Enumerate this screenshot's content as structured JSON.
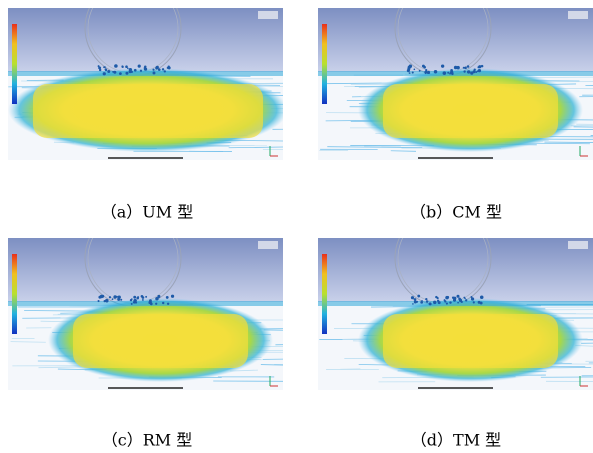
{
  "panels": [
    {
      "caption": "（a）UM 型"
    },
    {
      "caption": "（b）CM 型"
    },
    {
      "caption": "（c）RM 型"
    },
    {
      "caption": "（d）TM 型"
    }
  ]
}
